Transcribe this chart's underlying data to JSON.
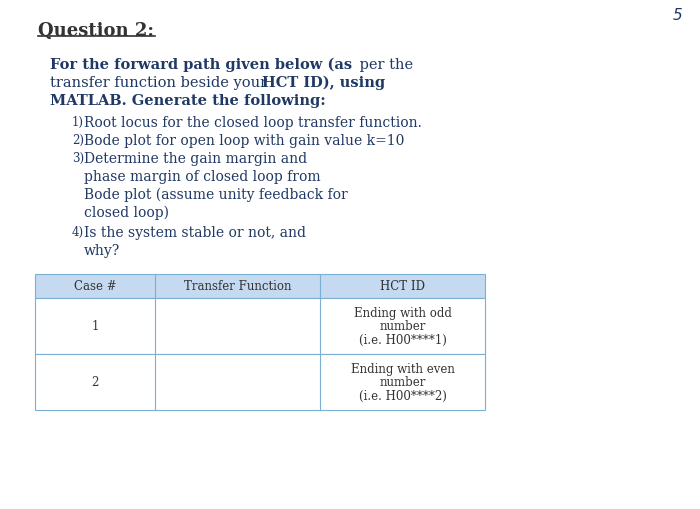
{
  "bg_color": "#ffffff",
  "page_number": "5",
  "text_color_dark": "#1f3864",
  "text_color_black": "#333333",
  "header_bg": "#c5d9f1",
  "table_border": "#7bafd4",
  "font_size_title": 12,
  "font_size_body": 10.5,
  "font_size_item": 10,
  "font_size_small": 8.5,
  "table_headers": [
    "Case #",
    "Transfer Function",
    "HCT ID"
  ],
  "table_rows": [
    {
      "case": "1",
      "hct": [
        "Ending with odd",
        "number",
        "(i.e. H00****1)"
      ]
    },
    {
      "case": "2",
      "hct": [
        "Ending with even",
        "number",
        "(i.e. H00****2)"
      ]
    }
  ]
}
